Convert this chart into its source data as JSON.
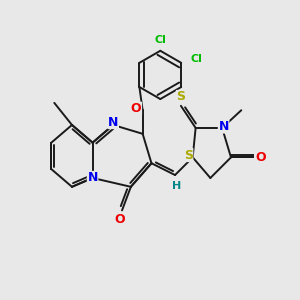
{
  "bg_color": "#e8e8e8",
  "bond_color": "#1a1a1a",
  "bond_width": 1.4,
  "atom_colors": {
    "C": "#1a1a1a",
    "N": "#0000ee",
    "O": "#ee0000",
    "S": "#aaaa00",
    "Cl": "#00bb00",
    "H": "#008888"
  },
  "font_size": 7.5
}
